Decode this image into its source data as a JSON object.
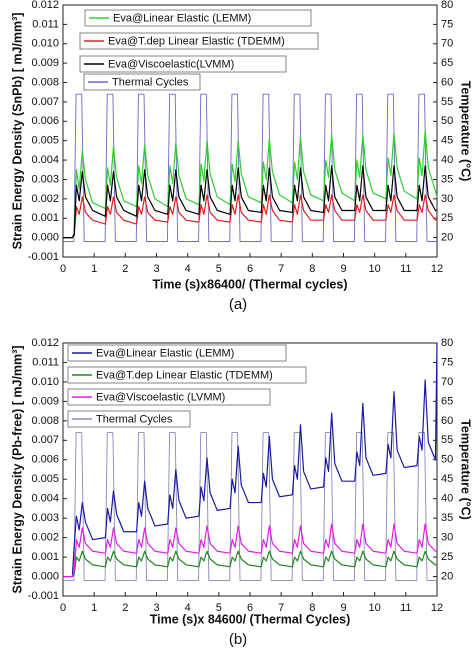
{
  "chart_data": [
    {
      "type": "line",
      "panel": "(a)",
      "xlabel": "Time (s)x86400/ (Thermal cycles)",
      "ylabel": "Strain Energy Density (SnPb) [ mJ/mm³]",
      "y2label": "Temperature (°C)",
      "xlim": [
        0,
        12
      ],
      "xticks": [
        0,
        1,
        2,
        3,
        4,
        5,
        6,
        7,
        8,
        9,
        10,
        11,
        12
      ],
      "ylim": [
        -0.001,
        0.012
      ],
      "yticks": [
        -0.001,
        {
          "value": 0,
          "label": "0.000"
        },
        0.001,
        0.002,
        0.003,
        0.004,
        0.005,
        0.006,
        0.007,
        0.008,
        0.009,
        {
          "value": 0.01,
          "label": "0.010"
        },
        0.011,
        0.012
      ],
      "y2lim": [
        15,
        80
      ],
      "y2ticks": [
        20,
        25,
        30,
        35,
        40,
        45,
        50,
        55,
        60,
        65,
        70,
        75,
        80
      ],
      "x": [
        0,
        0.3,
        0.36,
        0.43,
        0.52,
        0.62,
        0.72,
        0.95,
        1.36,
        1.43,
        1.52,
        1.62,
        1.72,
        1.95,
        2.36,
        2.43,
        2.52,
        2.62,
        2.72,
        2.95,
        3.36,
        3.43,
        3.52,
        3.62,
        3.72,
        3.95,
        4.36,
        4.43,
        4.52,
        4.62,
        4.72,
        4.95,
        5.36,
        5.43,
        5.52,
        5.62,
        5.72,
        5.95,
        6.36,
        6.43,
        6.52,
        6.62,
        6.72,
        6.95,
        7.36,
        7.43,
        7.52,
        7.62,
        7.72,
        7.95,
        8.36,
        8.43,
        8.52,
        8.62,
        8.72,
        8.95,
        9.36,
        9.43,
        9.52,
        9.62,
        9.72,
        9.95,
        10.36,
        10.43,
        10.52,
        10.62,
        10.72,
        10.95,
        11.36,
        11.43,
        11.52,
        11.62,
        11.72,
        11.95,
        12
      ],
      "series": [
        {
          "name": "Eva@Linear Elastic (LEMM)",
          "color": "#33cc33",
          "values": [
            0,
            0,
            0.0002,
            0.0035,
            0.0025,
            0.0045,
            0.003,
            0.0018,
            0.0015,
            0.0036,
            0.0027,
            0.0047,
            0.0031,
            0.0019,
            0.0016,
            0.0037,
            0.0028,
            0.0048,
            0.0032,
            0.002,
            0.0016,
            0.0037,
            0.0028,
            0.0049,
            0.0032,
            0.002,
            0.0017,
            0.0038,
            0.0029,
            0.005,
            0.0033,
            0.0021,
            0.0017,
            0.0038,
            0.0029,
            0.005,
            0.0033,
            0.0021,
            0.0018,
            0.0039,
            0.003,
            0.0051,
            0.0034,
            0.0022,
            0.0018,
            0.0039,
            0.003,
            0.0052,
            0.0034,
            0.0022,
            0.0019,
            0.004,
            0.0031,
            0.0053,
            0.0035,
            0.0023,
            0.0019,
            0.004,
            0.0031,
            0.0053,
            0.0035,
            0.0023,
            0.002,
            0.0041,
            0.0032,
            0.0054,
            0.0036,
            0.0024,
            0.002,
            0.0041,
            0.0032,
            0.0055,
            0.0036,
            0.0024,
            0.0021
          ]
        },
        {
          "name": "Eva@T.dep Linear Elastic (TDEMM)",
          "color": "#e02020",
          "values": [
            0,
            0,
            0.0001,
            0.0016,
            0.0012,
            0.0021,
            0.0013,
            0.0009,
            0.0007,
            0.0016,
            0.0012,
            0.0021,
            0.0013,
            0.0009,
            0.0007,
            0.0016,
            0.0012,
            0.0021,
            0.0013,
            0.0009,
            0.0008,
            0.0016,
            0.0012,
            0.0021,
            0.0013,
            0.0009,
            0.0008,
            0.0017,
            0.0012,
            0.0022,
            0.0013,
            0.0009,
            0.0008,
            0.0017,
            0.0012,
            0.0022,
            0.0013,
            0.0009,
            0.0008,
            0.0017,
            0.0012,
            0.0022,
            0.0014,
            0.0009,
            0.0008,
            0.0017,
            0.0012,
            0.0022,
            0.0014,
            0.0009,
            0.0009,
            0.0017,
            0.0013,
            0.0022,
            0.0014,
            0.0009,
            0.0009,
            0.0017,
            0.0013,
            0.0022,
            0.0014,
            0.0009,
            0.0009,
            0.0017,
            0.0013,
            0.0022,
            0.0014,
            0.0009,
            0.0009,
            0.0017,
            0.0013,
            0.0022,
            0.0014,
            0.0009,
            0.0009
          ]
        },
        {
          "name": "Eva@Viscoelastic(LVMM)",
          "color": "#000000",
          "values": [
            0,
            0,
            0.0002,
            0.0027,
            0.0019,
            0.0034,
            0.0021,
            0.0014,
            0.0011,
            0.0027,
            0.0019,
            0.0034,
            0.0021,
            0.0014,
            0.0011,
            0.0027,
            0.0019,
            0.0035,
            0.0021,
            0.0014,
            0.0012,
            0.0027,
            0.0019,
            0.0035,
            0.0021,
            0.0014,
            0.0012,
            0.0027,
            0.0019,
            0.0035,
            0.0021,
            0.0014,
            0.0012,
            0.0027,
            0.0019,
            0.0036,
            0.0021,
            0.0014,
            0.0013,
            0.0027,
            0.0019,
            0.0036,
            0.0021,
            0.0014,
            0.0013,
            0.0027,
            0.0019,
            0.0036,
            0.0021,
            0.0014,
            0.0013,
            0.0027,
            0.0019,
            0.0037,
            0.0021,
            0.0014,
            0.0014,
            0.0027,
            0.0019,
            0.0037,
            0.0021,
            0.0014,
            0.0014,
            0.0027,
            0.0019,
            0.0037,
            0.0021,
            0.0014,
            0.0014,
            0.0027,
            0.0019,
            0.0037,
            0.0021,
            0.0014,
            0.0014
          ]
        },
        {
          "name": "Thermal Cycles",
          "color": "#6a6acc",
          "axis": "y2",
          "x": [
            0,
            0.35,
            0.42,
            0.6,
            0.68,
            1.35,
            1.42,
            1.6,
            1.68,
            2.35,
            2.42,
            2.6,
            2.68,
            3.35,
            3.42,
            3.6,
            3.68,
            4.35,
            4.42,
            4.6,
            4.68,
            5.35,
            5.42,
            5.6,
            5.68,
            6.35,
            6.42,
            6.6,
            6.68,
            7.35,
            7.42,
            7.6,
            7.68,
            8.35,
            8.42,
            8.6,
            8.68,
            9.35,
            9.42,
            9.6,
            9.68,
            10.35,
            10.42,
            10.6,
            10.68,
            11.35,
            11.42,
            11.6,
            11.68,
            12
          ],
          "values": [
            19,
            19,
            57,
            57,
            19,
            19,
            57,
            57,
            19,
            19,
            57,
            57,
            19,
            19,
            57,
            57,
            19,
            19,
            57,
            57,
            19,
            19,
            57,
            57,
            19,
            19,
            57,
            57,
            19,
            19,
            57,
            57,
            19,
            19,
            57,
            57,
            19,
            19,
            57,
            57,
            19,
            19,
            57,
            57,
            19,
            19,
            57,
            57,
            19,
            19
          ]
        }
      ]
    },
    {
      "type": "line",
      "panel": "(b)",
      "xlabel": "Time (s)x 84600/ (Thermal Cycles)",
      "ylabel": "Strain Energy Density (Pb-free) [ mJ/mm³]",
      "y2label": "Temperature (°C)",
      "xlim": [
        0,
        12
      ],
      "xticks": [
        0,
        1,
        2,
        3,
        4,
        5,
        6,
        7,
        8,
        9,
        10,
        11,
        12
      ],
      "ylim": [
        -0.001,
        0.012
      ],
      "yticks": [
        -0.001,
        {
          "value": 0,
          "label": "0.000"
        },
        0.001,
        0.002,
        0.003,
        0.004,
        0.005,
        0.006,
        0.007,
        0.008,
        0.009,
        {
          "value": 0.01,
          "label": "0.010"
        },
        0.011,
        0.012
      ],
      "y2lim": [
        15,
        80
      ],
      "y2ticks": [
        20,
        25,
        30,
        35,
        40,
        45,
        50,
        55,
        60,
        65,
        70,
        75,
        80
      ],
      "x": [
        0,
        0.3,
        0.36,
        0.43,
        0.52,
        0.62,
        0.72,
        0.95,
        1.36,
        1.43,
        1.52,
        1.62,
        1.72,
        1.95,
        2.36,
        2.43,
        2.52,
        2.62,
        2.72,
        2.95,
        3.36,
        3.43,
        3.52,
        3.62,
        3.72,
        3.95,
        4.36,
        4.43,
        4.52,
        4.62,
        4.72,
        4.95,
        5.36,
        5.43,
        5.52,
        5.62,
        5.72,
        5.95,
        6.36,
        6.43,
        6.52,
        6.62,
        6.72,
        6.95,
        7.36,
        7.43,
        7.52,
        7.62,
        7.72,
        7.95,
        8.36,
        8.43,
        8.52,
        8.62,
        8.72,
        8.95,
        9.36,
        9.43,
        9.52,
        9.62,
        9.72,
        9.95,
        10.36,
        10.43,
        10.52,
        10.62,
        10.72,
        10.95,
        11.36,
        11.43,
        11.52,
        11.62,
        11.72,
        11.95,
        12
      ],
      "series": [
        {
          "name": "Eva@Linear Elastic (LEMM)",
          "color": "#1a1aa0",
          "values": [
            0,
            0,
            0.0016,
            0.0031,
            0.0024,
            0.0038,
            0.0028,
            0.0019,
            0.002,
            0.0035,
            0.0028,
            0.0044,
            0.0032,
            0.0023,
            0.0023,
            0.0038,
            0.0031,
            0.0049,
            0.0035,
            0.0026,
            0.0027,
            0.0042,
            0.0035,
            0.0055,
            0.0039,
            0.003,
            0.0031,
            0.0046,
            0.0039,
            0.0061,
            0.0043,
            0.0034,
            0.0035,
            0.005,
            0.0043,
            0.0067,
            0.0047,
            0.0038,
            0.0038,
            0.0053,
            0.0046,
            0.0072,
            0.005,
            0.0041,
            0.0042,
            0.0057,
            0.005,
            0.0078,
            0.0054,
            0.0045,
            0.0046,
            0.0061,
            0.0054,
            0.0084,
            0.0058,
            0.0049,
            0.0049,
            0.0064,
            0.0057,
            0.0089,
            0.0061,
            0.0052,
            0.0053,
            0.0068,
            0.0061,
            0.0095,
            0.0065,
            0.0056,
            0.0057,
            0.0072,
            0.0065,
            0.0101,
            0.0069,
            0.006,
            0.012
          ]
        },
        {
          "name": "Eva@T.dep Linear Elastic (TDEMM)",
          "color": "#208a20",
          "values": [
            0,
            0,
            0.0001,
            0.001,
            0.0008,
            0.0013,
            0.0009,
            0.0006,
            0.0005,
            0.001,
            0.0008,
            0.0013,
            0.0009,
            0.0006,
            0.0005,
            0.001,
            0.0008,
            0.0013,
            0.0009,
            0.0006,
            0.0005,
            0.001,
            0.0008,
            0.0013,
            0.0009,
            0.0006,
            0.0005,
            0.001,
            0.0008,
            0.0013,
            0.0009,
            0.0006,
            0.0005,
            0.001,
            0.0008,
            0.0013,
            0.0009,
            0.0006,
            0.0005,
            0.001,
            0.0008,
            0.0013,
            0.0009,
            0.0006,
            0.0005,
            0.001,
            0.0008,
            0.0013,
            0.0009,
            0.0006,
            0.0005,
            0.001,
            0.0008,
            0.0013,
            0.0009,
            0.0006,
            0.0005,
            0.001,
            0.0008,
            0.0013,
            0.0009,
            0.0006,
            0.0005,
            0.001,
            0.0008,
            0.0013,
            0.0009,
            0.0006,
            0.0005,
            0.001,
            0.0008,
            0.0013,
            0.0009,
            0.0006,
            0.0006
          ]
        },
        {
          "name": "Eva@Viscoelastic (LVMM)",
          "color": "#e020e0",
          "values": [
            0,
            0,
            0.0003,
            0.0019,
            0.0015,
            0.0025,
            0.0017,
            0.0013,
            0.0012,
            0.0019,
            0.0015,
            0.0025,
            0.0017,
            0.0013,
            0.0012,
            0.0019,
            0.0015,
            0.0025,
            0.0017,
            0.0013,
            0.0012,
            0.0019,
            0.0015,
            0.0025,
            0.0017,
            0.0013,
            0.0012,
            0.0019,
            0.0015,
            0.0026,
            0.0017,
            0.0013,
            0.0012,
            0.0019,
            0.0015,
            0.0026,
            0.0017,
            0.0013,
            0.0012,
            0.0019,
            0.0015,
            0.0026,
            0.0017,
            0.0013,
            0.0012,
            0.0019,
            0.0015,
            0.0026,
            0.0017,
            0.0013,
            0.0012,
            0.0019,
            0.0015,
            0.0027,
            0.0017,
            0.0013,
            0.0012,
            0.0019,
            0.0015,
            0.0027,
            0.0017,
            0.0013,
            0.0012,
            0.0019,
            0.0015,
            0.0027,
            0.0017,
            0.0013,
            0.0012,
            0.0019,
            0.0015,
            0.0027,
            0.0017,
            0.0013,
            0.0013
          ]
        },
        {
          "name": "Thermal Cycles",
          "color": "#8888bb",
          "axis": "y2",
          "x": [
            0,
            0.35,
            0.42,
            0.6,
            0.68,
            1.35,
            1.42,
            1.6,
            1.68,
            2.35,
            2.42,
            2.6,
            2.68,
            3.35,
            3.42,
            3.6,
            3.68,
            4.35,
            4.42,
            4.6,
            4.68,
            5.35,
            5.42,
            5.6,
            5.68,
            6.35,
            6.42,
            6.6,
            6.68,
            7.35,
            7.42,
            7.6,
            7.68,
            8.35,
            8.42,
            8.6,
            8.68,
            9.35,
            9.42,
            9.6,
            9.68,
            10.35,
            10.42,
            10.6,
            10.68,
            11.35,
            11.42,
            11.6,
            11.68,
            12
          ],
          "values": [
            19,
            19,
            57,
            57,
            19,
            19,
            57,
            57,
            19,
            19,
            57,
            57,
            19,
            19,
            57,
            57,
            19,
            19,
            57,
            57,
            19,
            19,
            57,
            57,
            19,
            19,
            57,
            57,
            19,
            19,
            57,
            57,
            19,
            19,
            57,
            57,
            19,
            19,
            57,
            57,
            19,
            19,
            57,
            57,
            19,
            19,
            57,
            57,
            19,
            19
          ]
        }
      ]
    }
  ]
}
